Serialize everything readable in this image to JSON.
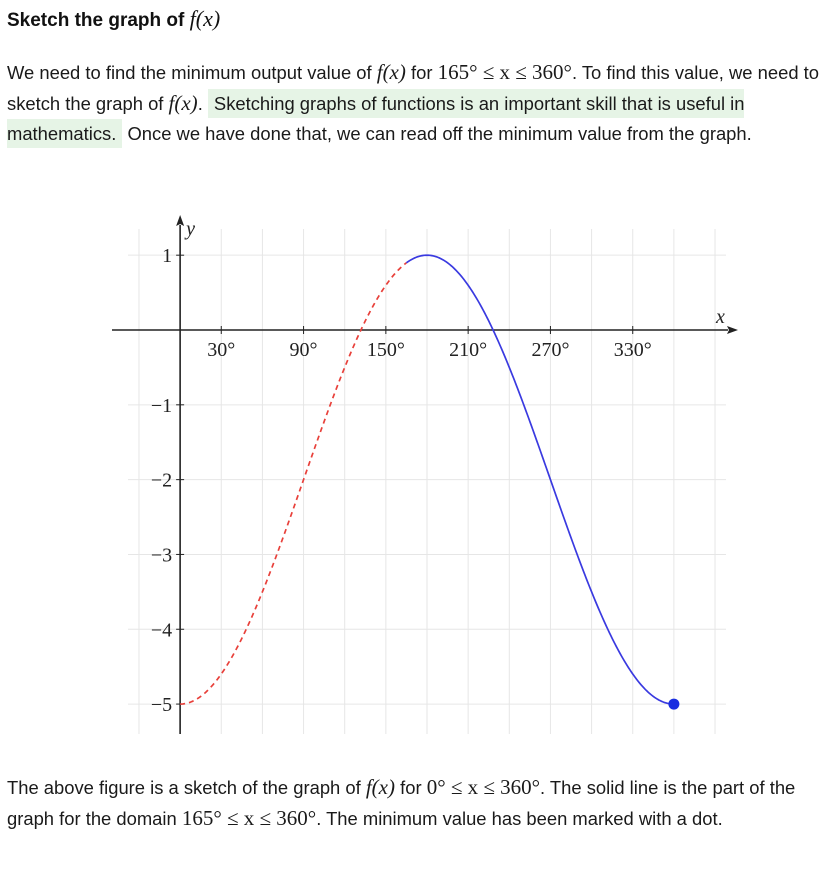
{
  "heading": {
    "prefix": "Sketch the graph of ",
    "fx": "f(x)"
  },
  "intro": {
    "t1": "We need to find the minimum output value of ",
    "fx1": "f(x)",
    "t2": " for ",
    "dom1": "165° ≤ x ≤ 360°",
    "t3": ". To find this value, we need to sketch the graph of ",
    "fx2": "f(x)",
    "t4": ". ",
    "highlight": "Sketching graphs of functions is an important skill that is useful in mathematics.",
    "t5": " Once we have done that, we can read off the minimum value from the graph."
  },
  "outro": {
    "t1": "The above figure is a sketch of the graph of ",
    "fx": "f(x)",
    "t2": " for ",
    "dom_full": "0° ≤ x ≤ 360°",
    "t3": ". The solid line is the part of the graph for the domain ",
    "dom_part": "165° ≤ x ≤ 360°",
    "t4": ". The minimum value has been marked with a dot."
  },
  "chart_data": {
    "type": "line",
    "xlabel": "x",
    "ylabel": "y",
    "x_tick_labels": [
      "30°",
      "90°",
      "150°",
      "210°",
      "270°",
      "330°"
    ],
    "x_ticks": [
      30,
      90,
      150,
      210,
      270,
      330
    ],
    "y_tick_labels": [
      "1",
      "−1",
      "−2",
      "−3",
      "−4",
      "−5"
    ],
    "y_ticks": [
      1,
      -1,
      -2,
      -3,
      -4,
      -5
    ],
    "xlim": [
      -38,
      398
    ],
    "ylim": [
      -5.4,
      1.35
    ],
    "grid": true,
    "function": "f(x) = 3·sin(x − 90°) − 2",
    "series": [
      {
        "style": "dashed",
        "color": "#e8403a",
        "x_range": [
          0,
          165
        ]
      },
      {
        "style": "solid",
        "color": "#3a3ae0",
        "x_range": [
          165,
          360
        ]
      }
    ],
    "minimum_point": {
      "x": 360,
      "y": -5,
      "color": "#1a2ee0"
    }
  }
}
